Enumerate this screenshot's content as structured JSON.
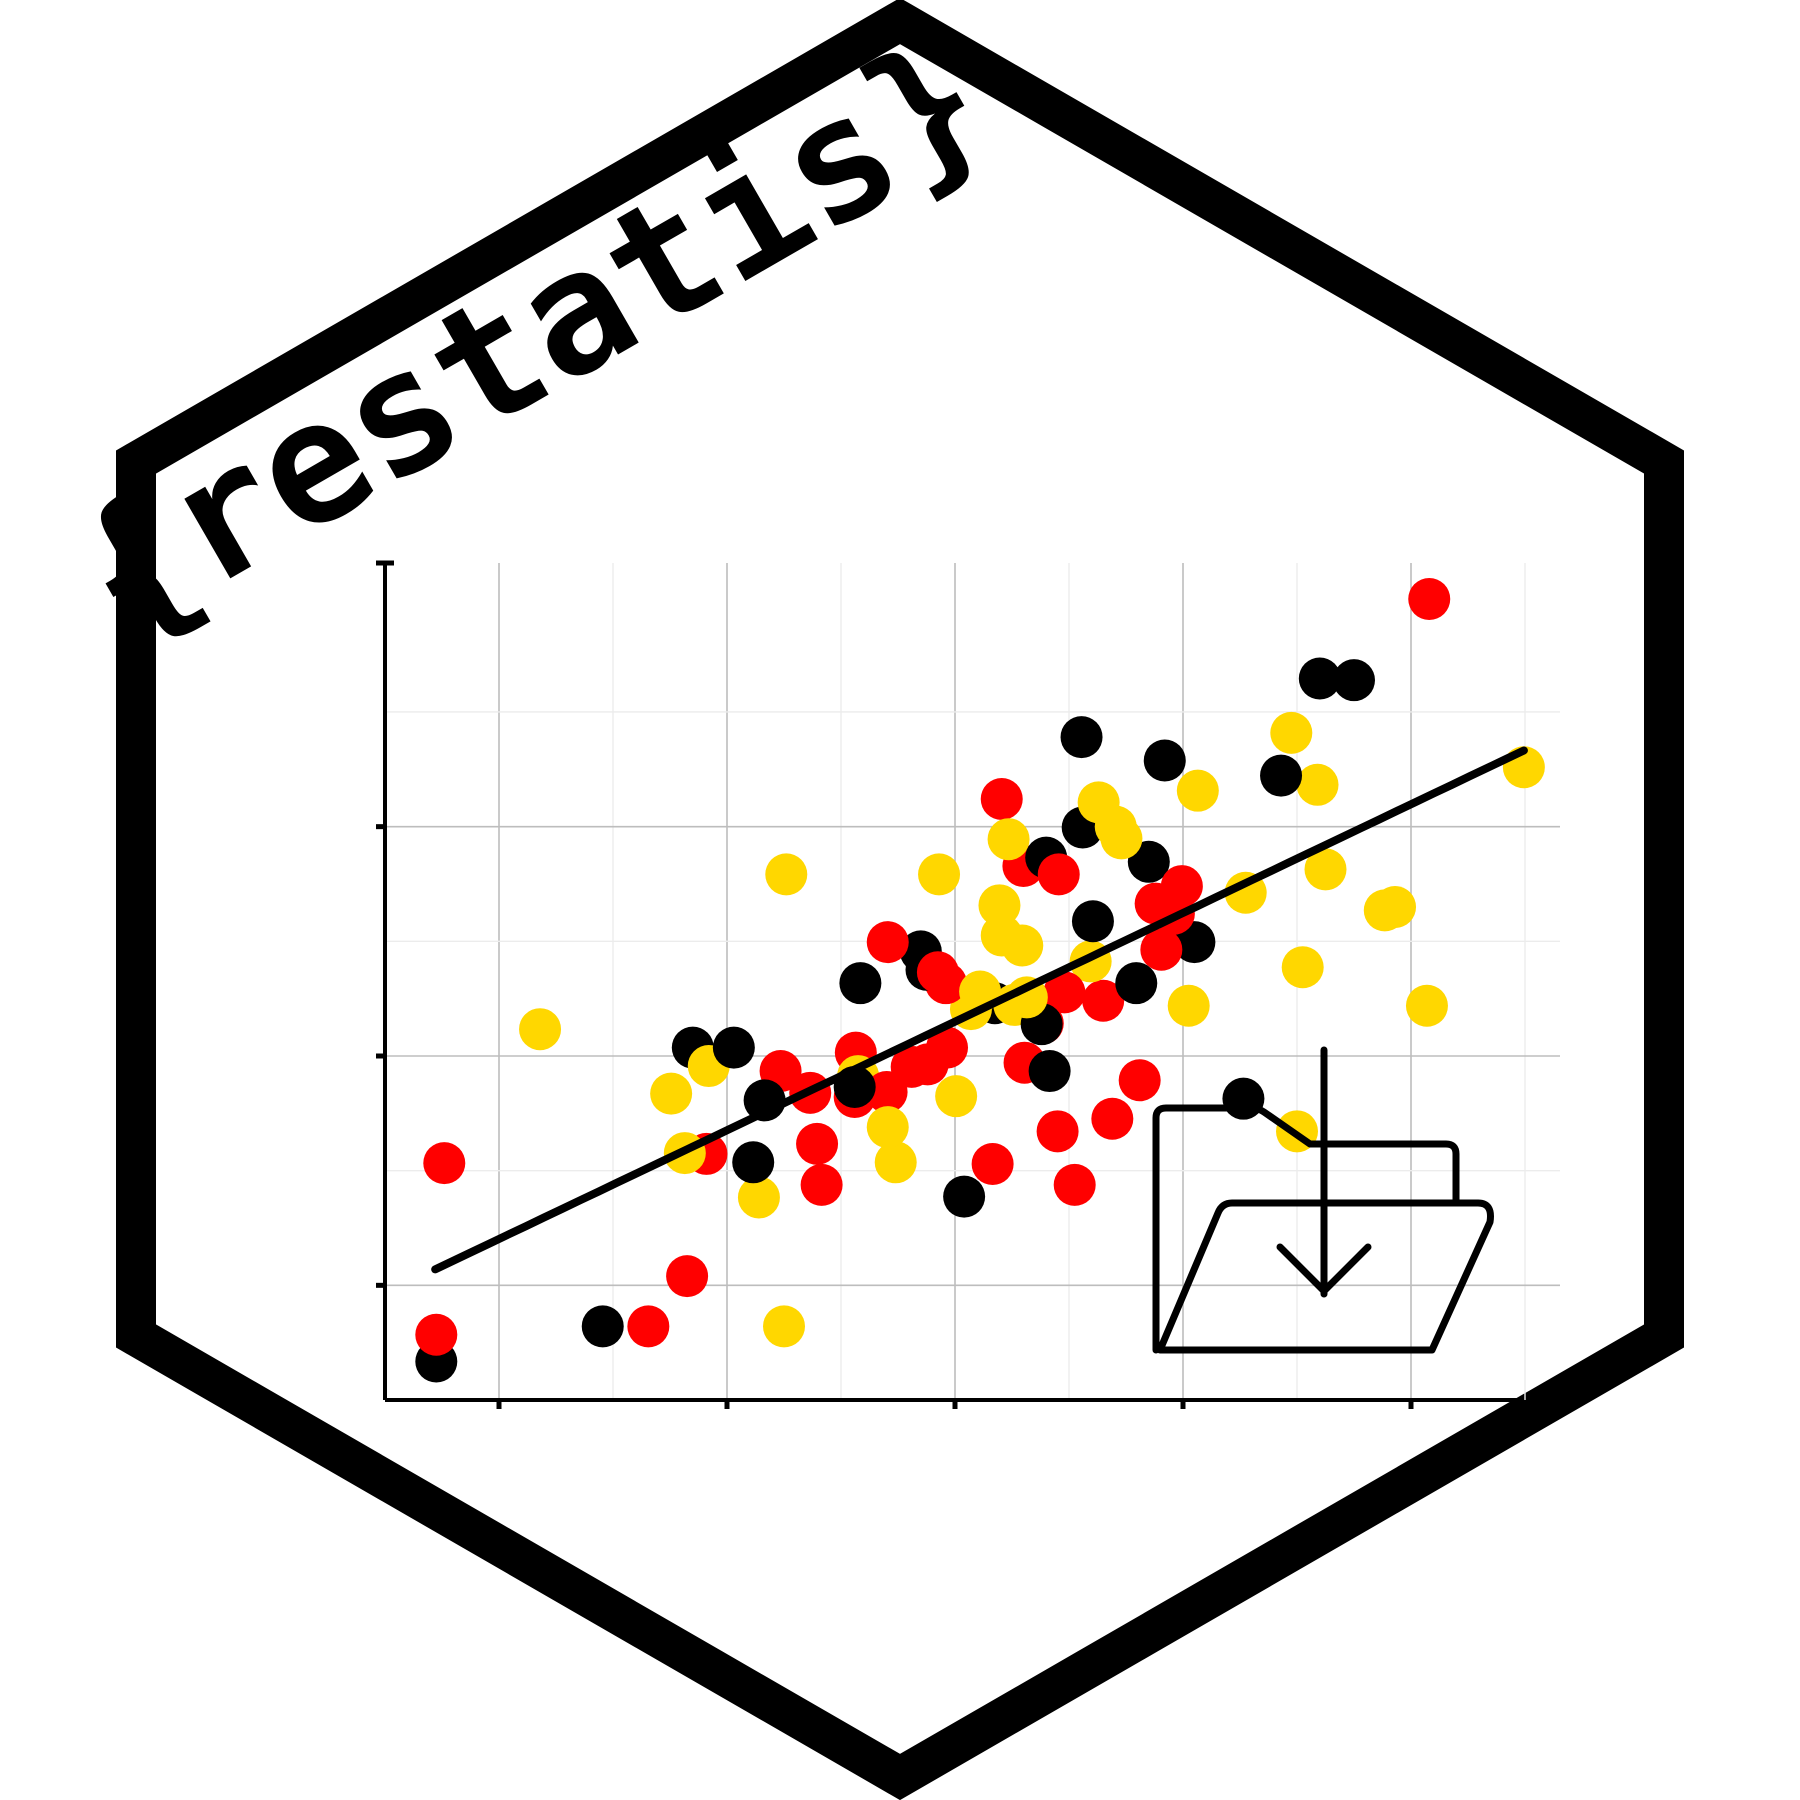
{
  "sticker": {
    "title": "{restatis}",
    "border_color": "#000000",
    "background_color": "#ffffff"
  },
  "icon": {
    "name": "folder-download-icon"
  },
  "colors": {
    "red": "#ff0000",
    "black": "#000000",
    "yellow": "#ffd700"
  },
  "chart_data": {
    "type": "scatter",
    "xlim": [
      0,
      100
    ],
    "ylim": [
      0,
      100
    ],
    "grid": true,
    "x_ticks": [
      10,
      30,
      50,
      70,
      90
    ],
    "y_ticks": [
      13.7,
      41.1,
      68.5
    ],
    "trend_line": {
      "x": [
        4.4,
        99.9
      ],
      "y": [
        15.6,
        77.6
      ]
    },
    "series": [
      {
        "color": "#000000",
        "points": [
          [
            4.5,
            4.6
          ],
          [
            19.1,
            8.8
          ],
          [
            27.0,
            42.1
          ],
          [
            30.6,
            42.1
          ],
          [
            33.3,
            35.8
          ],
          [
            32.3,
            28.4
          ],
          [
            41.2,
            37.4
          ],
          [
            41.7,
            49.8
          ],
          [
            47.0,
            53.6
          ],
          [
            47.5,
            51.4
          ],
          [
            50.8,
            24.3
          ],
          [
            53.5,
            47.4
          ],
          [
            57.6,
            44.9
          ],
          [
            58.3,
            39.3
          ],
          [
            58.0,
            64.8
          ],
          [
            61.2,
            68.4
          ],
          [
            61.1,
            79.2
          ],
          [
            62.1,
            57.2
          ],
          [
            65.9,
            49.8
          ],
          [
            67.0,
            64.3
          ],
          [
            68.4,
            76.4
          ],
          [
            71.0,
            54.7
          ],
          [
            75.3,
            36.0
          ],
          [
            78.6,
            74.6
          ],
          [
            82.0,
            86.2
          ],
          [
            85.0,
            86.0
          ]
        ]
      },
      {
        "color": "#ff0000",
        "points": [
          [
            5.2,
            28.3
          ],
          [
            4.5,
            7.8
          ],
          [
            26.5,
            14.8
          ],
          [
            23.1,
            8.8
          ],
          [
            28.2,
            29.4
          ],
          [
            34.7,
            39.3
          ],
          [
            37.3,
            36.7
          ],
          [
            37.9,
            30.6
          ],
          [
            38.3,
            25.7
          ],
          [
            41.3,
            41.5
          ],
          [
            41.2,
            36.2
          ],
          [
            44.0,
            36.8
          ],
          [
            44.1,
            54.7
          ],
          [
            46.2,
            39.8
          ],
          [
            47.6,
            40.1
          ],
          [
            48.5,
            51.1
          ],
          [
            49.2,
            49.8
          ],
          [
            49.3,
            42.1
          ],
          [
            53.3,
            28.2
          ],
          [
            54.1,
            71.8
          ],
          [
            56.1,
            40.3
          ],
          [
            56.0,
            63.8
          ],
          [
            57.7,
            45.0
          ],
          [
            59.1,
            62.8
          ],
          [
            59.6,
            48.7
          ],
          [
            59.0,
            32.1
          ],
          [
            60.5,
            25.7
          ],
          [
            63.8,
            33.6
          ],
          [
            63.0,
            47.7
          ],
          [
            66.2,
            38.2
          ],
          [
            68.1,
            53.8
          ],
          [
            67.6,
            59.3
          ],
          [
            69.2,
            58.1
          ],
          [
            69.9,
            61.4
          ],
          [
            91.6,
            95.7
          ]
        ]
      },
      {
        "color": "#ffd700",
        "points": [
          [
            13.6,
            44.3
          ],
          [
            25.1,
            36.6
          ],
          [
            26.3,
            29.5
          ],
          [
            28.4,
            39.9
          ],
          [
            32.8,
            24.2
          ],
          [
            35.0,
            8.8
          ],
          [
            35.2,
            62.8
          ],
          [
            41.5,
            38.7
          ],
          [
            44.1,
            32.6
          ],
          [
            44.8,
            28.4
          ],
          [
            48.6,
            62.8
          ],
          [
            50.1,
            36.3
          ],
          [
            51.4,
            46.7
          ],
          [
            52.2,
            48.8
          ],
          [
            53.9,
            59.1
          ],
          [
            54.1,
            55.5
          ],
          [
            54.7,
            67.0
          ],
          [
            55.2,
            47.2
          ],
          [
            55.9,
            54.3
          ],
          [
            56.3,
            48.1
          ],
          [
            61.9,
            52.4
          ],
          [
            62.6,
            71.4
          ],
          [
            64.1,
            68.5
          ],
          [
            64.6,
            67.1
          ],
          [
            70.5,
            47.1
          ],
          [
            71.3,
            72.8
          ],
          [
            75.5,
            60.6
          ],
          [
            79.5,
            79.7
          ],
          [
            80.0,
            32.1
          ],
          [
            81.8,
            73.5
          ],
          [
            82.5,
            63.4
          ],
          [
            87.7,
            58.5
          ],
          [
            88.6,
            58.9
          ],
          [
            91.4,
            47.1
          ],
          [
            99.9,
            75.6
          ],
          [
            80.5,
            51.7
          ]
        ]
      }
    ]
  }
}
